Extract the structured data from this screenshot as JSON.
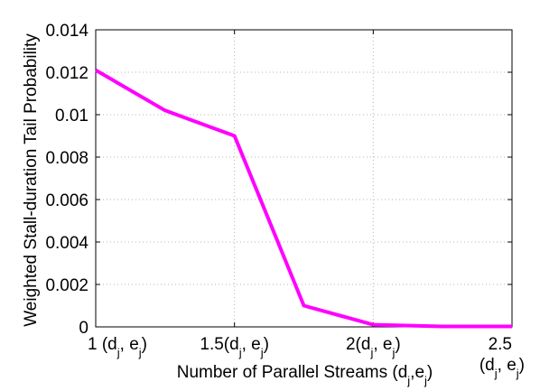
{
  "chart_data": {
    "type": "line",
    "title": "",
    "xlabel": "Number of Parallel Streams (d_j,e_j)",
    "ylabel": "Weighted Stall-duration Tail Probability",
    "xlim": [
      1,
      2.5
    ],
    "ylim": [
      0,
      0.014
    ],
    "grid": true,
    "legend": "none",
    "x": [
      1,
      1.25,
      1.5,
      1.75,
      2,
      2.25,
      2.5
    ],
    "series": [
      {
        "color": "#ff00ff",
        "values": [
          0.0121,
          0.0102,
          0.009,
          0.001,
          0.0001,
          2e-05,
          2e-05
        ]
      }
    ],
    "xticks": [
      {
        "value": 1,
        "label": "1 (d_j, e_j)"
      },
      {
        "value": 1.5,
        "label": "1.5(d_j, e_j)"
      },
      {
        "value": 2,
        "label": "2(d_j, e_j)"
      },
      {
        "value": 2.5,
        "label": "2.5 (d_j, e_j)"
      }
    ],
    "yticks": [
      "0",
      "0.002",
      "0.004",
      "0.006",
      "0.008",
      "0.01",
      "0.012",
      "0.014"
    ]
  }
}
